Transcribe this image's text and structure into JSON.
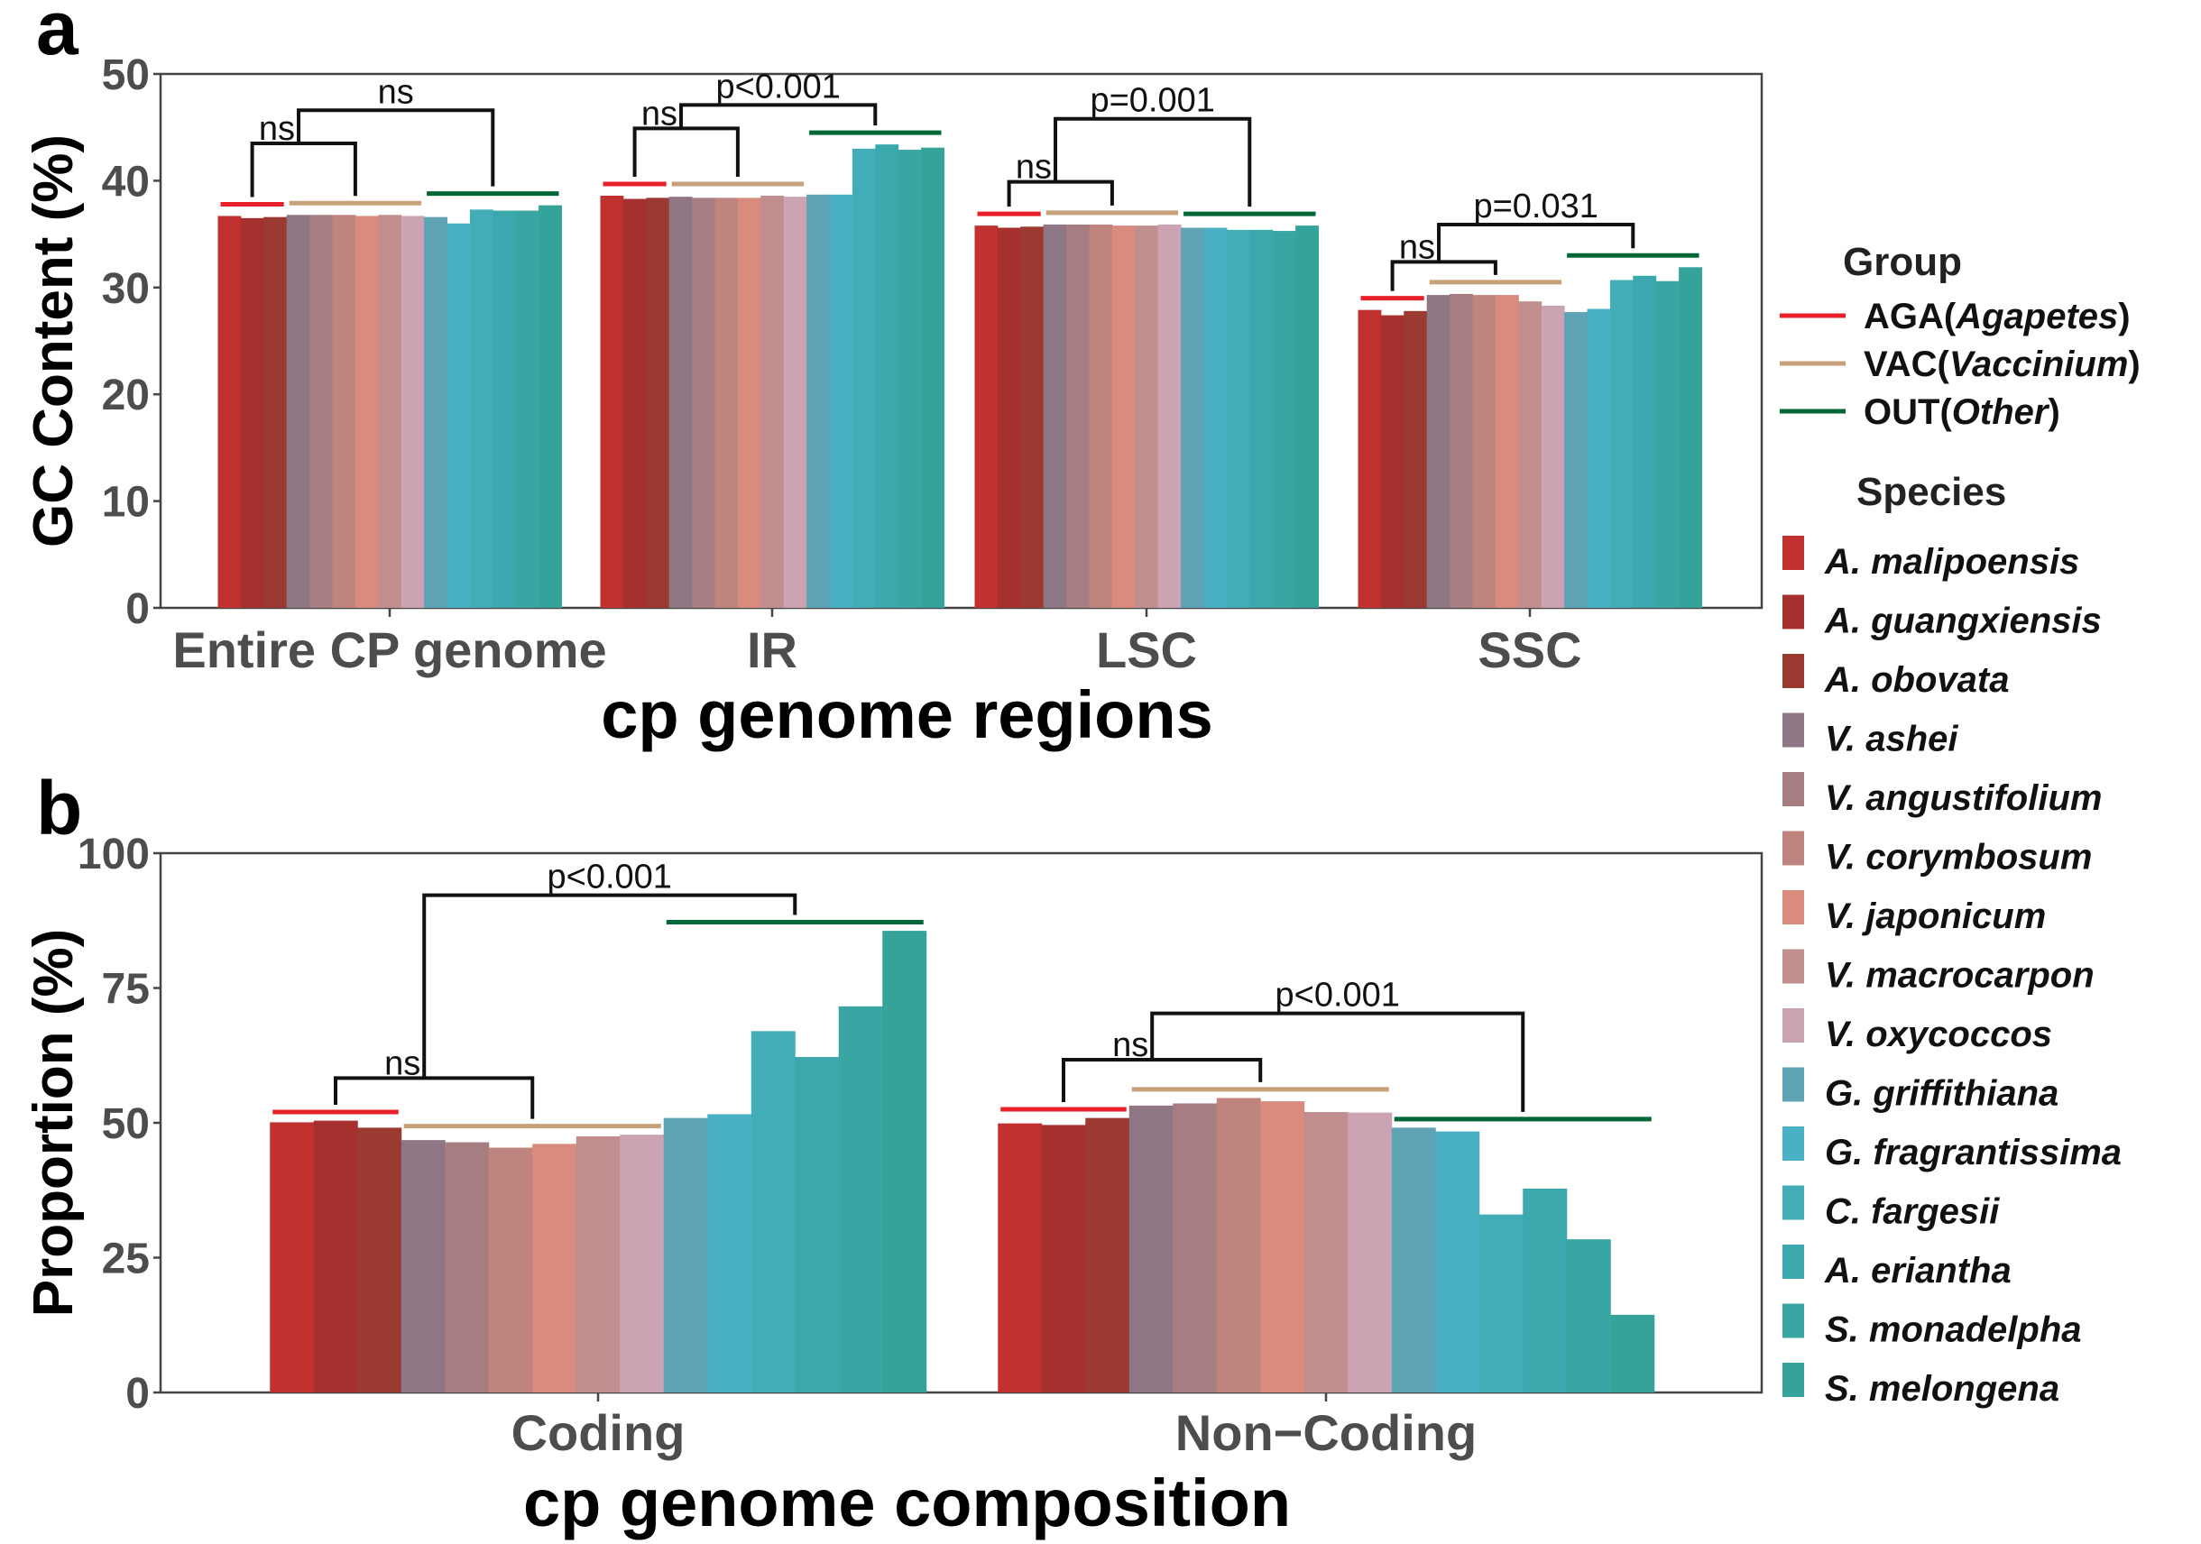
{
  "legend": {
    "group_title": "Group",
    "groups": [
      {
        "code": "AGA",
        "genus": "Agapetes",
        "color": "#e8202a"
      },
      {
        "code": "VAC",
        "genus": "Vaccinium",
        "color": "#c8a07a"
      },
      {
        "code": "OUT",
        "genus": "Other",
        "color": "#006837"
      }
    ],
    "species_title": "Species",
    "species": [
      {
        "name": "A. malipoensis",
        "group": "AGA",
        "color": "#c1312f"
      },
      {
        "name": "A. guangxiensis",
        "group": "AGA",
        "color": "#a5302e"
      },
      {
        "name": "A. obovata",
        "group": "AGA",
        "color": "#9b3a30"
      },
      {
        "name": "V. ashei",
        "group": "VAC",
        "color": "#8e7684"
      },
      {
        "name": "V. angustifolium",
        "group": "VAC",
        "color": "#a67d80"
      },
      {
        "name": "V. corymbosum",
        "group": "VAC",
        "color": "#c0847e"
      },
      {
        "name": "V. japonicum",
        "group": "VAC",
        "color": "#d98c7d"
      },
      {
        "name": "V. macrocarpon",
        "group": "VAC",
        "color": "#c08e8e"
      },
      {
        "name": "V. oxycoccos",
        "group": "VAC",
        "color": "#cca3b2"
      },
      {
        "name": "G. griffithiana",
        "group": "OUT",
        "color": "#5fa3b5"
      },
      {
        "name": "G. fragrantissima",
        "group": "OUT",
        "color": "#4ab0c4"
      },
      {
        "name": "C. fargesii",
        "group": "OUT",
        "color": "#42adb7"
      },
      {
        "name": "A. eriantha",
        "group": "OUT",
        "color": "#3ba8ad"
      },
      {
        "name": "S. monadelpha",
        "group": "OUT",
        "color": "#39a6a3"
      },
      {
        "name": "S. melongena",
        "group": "OUT",
        "color": "#35a39a"
      }
    ]
  },
  "chart_data": [
    {
      "panel": "a",
      "type": "bar",
      "xlabel": "cp genome regions",
      "ylabel": "GC Content (%)",
      "ylim": [
        0,
        50
      ],
      "yticks": [
        0,
        10,
        20,
        30,
        40,
        50
      ],
      "categories": [
        "Entire CP genome",
        "IR",
        "LSC",
        "SSC"
      ],
      "values": [
        [
          36.7,
          36.5,
          36.6,
          36.8,
          36.8,
          36.8,
          36.7,
          36.8,
          36.7,
          36.6,
          36.0,
          37.3,
          37.2,
          37.2,
          37.7
        ],
        [
          38.6,
          38.3,
          38.4,
          38.5,
          38.4,
          38.4,
          38.4,
          38.6,
          38.5,
          38.7,
          38.7,
          43.0,
          43.4,
          42.9,
          43.1
        ],
        [
          35.8,
          35.6,
          35.7,
          35.9,
          35.9,
          35.9,
          35.8,
          35.8,
          35.9,
          35.6,
          35.6,
          35.4,
          35.4,
          35.3,
          35.8
        ],
        [
          27.9,
          27.4,
          27.8,
          29.3,
          29.4,
          29.3,
          29.3,
          28.7,
          28.3,
          27.7,
          28.0,
          30.7,
          31.1,
          30.6,
          31.9
        ]
      ],
      "group_line_offset": 1.1,
      "comparisons": [
        {
          "category": 0,
          "inner": {
            "label": "ns",
            "y": 43.5
          },
          "outer": {
            "label": "ns",
            "y": 46.6
          }
        },
        {
          "category": 1,
          "inner": {
            "label": "ns",
            "y": 44.9
          },
          "outer": {
            "label": "p<0.001",
            "y": 47.1
          }
        },
        {
          "category": 2,
          "inner": {
            "label": "ns",
            "y": 39.9
          },
          "outer": {
            "label": "p=0.001",
            "y": 45.8
          }
        },
        {
          "category": 3,
          "inner": {
            "label": "ns",
            "y": 32.4
          },
          "outer": {
            "label": "p=0.031",
            "y": 35.9
          }
        }
      ]
    },
    {
      "panel": "b",
      "type": "bar",
      "xlabel": "cp genome composition",
      "ylabel": "Proportion (%)",
      "ylim": [
        0,
        100
      ],
      "yticks": [
        0,
        25,
        50,
        75,
        100
      ],
      "categories": [
        "Coding",
        "Non−Coding"
      ],
      "values": [
        [
          50.1,
          50.4,
          49.1,
          46.8,
          46.4,
          45.4,
          46.1,
          47.5,
          47.8,
          50.9,
          51.6,
          67.0,
          62.2,
          71.6,
          85.6
        ],
        [
          49.9,
          49.6,
          50.9,
          53.2,
          53.6,
          54.6,
          54.0,
          52.0,
          51.9,
          49.1,
          48.4,
          33.0,
          37.8,
          28.4,
          14.4
        ]
      ],
      "group_line_offset": 1.6,
      "comparisons": [
        {
          "category": 0,
          "inner": {
            "label": "ns",
            "y": 58.3
          },
          "outer": {
            "label": "p<0.001",
            "y": 92.2
          }
        },
        {
          "category": 1,
          "inner": {
            "label": "ns",
            "y": 61.7
          },
          "outer": {
            "label": "p<0.001",
            "y": 70.3
          }
        }
      ]
    }
  ]
}
